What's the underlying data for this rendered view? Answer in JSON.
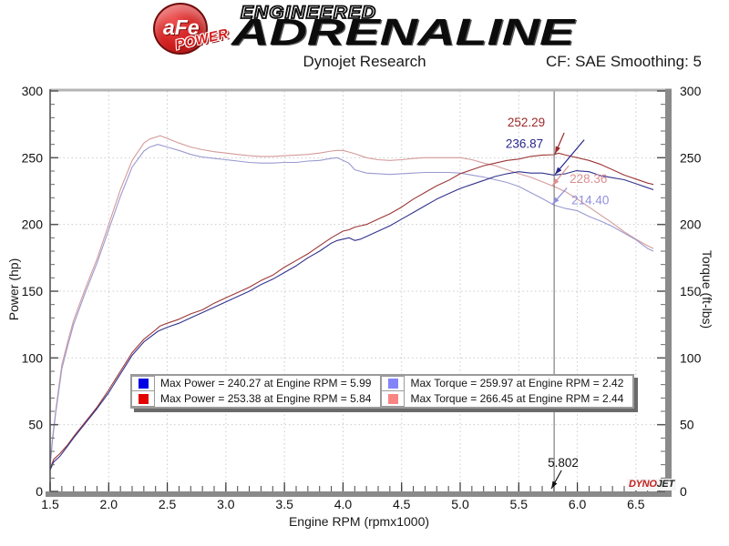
{
  "header": {
    "logo": {
      "badge_top": "aFe",
      "badge_reg": "®",
      "badge_bottom": "POWER",
      "line1": "ENGINEERED",
      "line2": "ADRENALINE"
    },
    "title": "Dynojet Research",
    "correction": "CF: SAE Smoothing: 5"
  },
  "chart_data": {
    "type": "line",
    "xlabel": "Engine RPM (rpmx1000)",
    "ylabel_left": "Power (hp)",
    "ylabel_right": "Torque (ft-lbs)",
    "xlim": [
      1.5,
      6.75
    ],
    "ylim": [
      0,
      300
    ],
    "x_major_ticks": [
      1.5,
      2.0,
      2.5,
      3.0,
      3.5,
      4.0,
      4.5,
      5.0,
      5.5,
      6.0,
      6.5
    ],
    "x_tick_labels": [
      "1.5",
      "2.0",
      "2.5",
      "3.0",
      "3.5",
      "4.0",
      "4.5",
      "5.0",
      "5.5",
      "6.0",
      "6.5"
    ],
    "x_minor_step": 0.1,
    "y_major_ticks": [
      0,
      50,
      100,
      150,
      200,
      250,
      300
    ],
    "y_tick_labels": [
      "0",
      "50",
      "100",
      "150",
      "200",
      "250",
      "300"
    ],
    "y_minor_step": 10,
    "grid": "dotted",
    "colors": {
      "grid": "#cbcbcb",
      "spine": "#8a8a8a",
      "spine_top": "#b4b4b4",
      "cursor_line": "#666666"
    },
    "series": [
      {
        "name": "torque-afe",
        "legend": "Max Torque = 266.45 at Engine RPM = 2.44",
        "axis": "right",
        "color": "#d49a9a",
        "points": [
          [
            1.5,
            20
          ],
          [
            1.52,
            40
          ],
          [
            1.55,
            62
          ],
          [
            1.6,
            95
          ],
          [
            1.65,
            112
          ],
          [
            1.7,
            128
          ],
          [
            1.8,
            152
          ],
          [
            1.9,
            174
          ],
          [
            2.0,
            200
          ],
          [
            2.1,
            226
          ],
          [
            2.2,
            248
          ],
          [
            2.3,
            261
          ],
          [
            2.35,
            264
          ],
          [
            2.44,
            266.5
          ],
          [
            2.5,
            264.5
          ],
          [
            2.6,
            261
          ],
          [
            2.7,
            258
          ],
          [
            2.8,
            256
          ],
          [
            2.9,
            254.5
          ],
          [
            3.0,
            253.5
          ],
          [
            3.1,
            252.5
          ],
          [
            3.2,
            251.5
          ],
          [
            3.3,
            251
          ],
          [
            3.4,
            251
          ],
          [
            3.5,
            251.5
          ],
          [
            3.6,
            252
          ],
          [
            3.7,
            252.5
          ],
          [
            3.8,
            253.5
          ],
          [
            3.9,
            255
          ],
          [
            3.95,
            255.5
          ],
          [
            4.0,
            255.5
          ],
          [
            4.1,
            253
          ],
          [
            4.2,
            250
          ],
          [
            4.3,
            248.5
          ],
          [
            4.4,
            248
          ],
          [
            4.5,
            248.5
          ],
          [
            4.6,
            249.5
          ],
          [
            4.7,
            250
          ],
          [
            4.8,
            250
          ],
          [
            4.9,
            250
          ],
          [
            5.0,
            250
          ],
          [
            5.1,
            248.5
          ],
          [
            5.2,
            246
          ],
          [
            5.3,
            244
          ],
          [
            5.4,
            241
          ],
          [
            5.5,
            238
          ],
          [
            5.6,
            235.5
          ],
          [
            5.7,
            232
          ],
          [
            5.8,
            228.5
          ],
          [
            5.9,
            224.5
          ],
          [
            6.0,
            219
          ],
          [
            6.1,
            213
          ],
          [
            6.2,
            207
          ],
          [
            6.3,
            201
          ],
          [
            6.4,
            194.5
          ],
          [
            6.5,
            189
          ],
          [
            6.6,
            184
          ],
          [
            6.65,
            182
          ]
        ]
      },
      {
        "name": "torque-stock",
        "legend": "Max Torque = 259.97 at Engine RPM = 2.42",
        "axis": "right",
        "color": "#9a9ad0",
        "points": [
          [
            1.5,
            19
          ],
          [
            1.52,
            38
          ],
          [
            1.55,
            60
          ],
          [
            1.6,
            92
          ],
          [
            1.65,
            109
          ],
          [
            1.7,
            125
          ],
          [
            1.8,
            149
          ],
          [
            1.9,
            171
          ],
          [
            2.0,
            196
          ],
          [
            2.1,
            221
          ],
          [
            2.2,
            243
          ],
          [
            2.3,
            255
          ],
          [
            2.35,
            258
          ],
          [
            2.42,
            260
          ],
          [
            2.5,
            258
          ],
          [
            2.6,
            255.5
          ],
          [
            2.7,
            252.5
          ],
          [
            2.8,
            250.5
          ],
          [
            2.9,
            249.5
          ],
          [
            3.0,
            248.5
          ],
          [
            3.1,
            247.5
          ],
          [
            3.2,
            246.5
          ],
          [
            3.3,
            246
          ],
          [
            3.4,
            246
          ],
          [
            3.5,
            246.5
          ],
          [
            3.6,
            246.5
          ],
          [
            3.7,
            247.5
          ],
          [
            3.8,
            248
          ],
          [
            3.9,
            249.5
          ],
          [
            3.95,
            250
          ],
          [
            4.0,
            248
          ],
          [
            4.05,
            246
          ],
          [
            4.1,
            241
          ],
          [
            4.2,
            238.5
          ],
          [
            4.3,
            238
          ],
          [
            4.4,
            237.5
          ],
          [
            4.5,
            238
          ],
          [
            4.6,
            238.5
          ],
          [
            4.7,
            239
          ],
          [
            4.8,
            239
          ],
          [
            4.9,
            239
          ],
          [
            5.0,
            238.5
          ],
          [
            5.1,
            237
          ],
          [
            5.2,
            235.5
          ],
          [
            5.3,
            233.5
          ],
          [
            5.4,
            231.5
          ],
          [
            5.5,
            228.5
          ],
          [
            5.6,
            224
          ],
          [
            5.7,
            219.5
          ],
          [
            5.8,
            214.5
          ],
          [
            5.9,
            212
          ],
          [
            6.0,
            210.3
          ],
          [
            6.1,
            206
          ],
          [
            6.2,
            202.5
          ],
          [
            6.3,
            198.5
          ],
          [
            6.4,
            193.5
          ],
          [
            6.5,
            188.5
          ],
          [
            6.6,
            182
          ],
          [
            6.65,
            180
          ]
        ]
      },
      {
        "name": "power-afe",
        "legend": "Max Power = 253.38 at Engine RPM = 5.84",
        "axis": "left",
        "color": "#9c3636",
        "points": [
          [
            1.5,
            17
          ],
          [
            1.53,
            24
          ],
          [
            1.58,
            28
          ],
          [
            1.65,
            35
          ],
          [
            1.7,
            41
          ],
          [
            1.8,
            52
          ],
          [
            1.9,
            63
          ],
          [
            2.0,
            76
          ],
          [
            2.1,
            90
          ],
          [
            2.2,
            104
          ],
          [
            2.3,
            114
          ],
          [
            2.4,
            121
          ],
          [
            2.44,
            124
          ],
          [
            2.5,
            126
          ],
          [
            2.6,
            129
          ],
          [
            2.7,
            133
          ],
          [
            2.8,
            136
          ],
          [
            2.9,
            141
          ],
          [
            3.0,
            145
          ],
          [
            3.1,
            149
          ],
          [
            3.2,
            153
          ],
          [
            3.3,
            158
          ],
          [
            3.4,
            162
          ],
          [
            3.5,
            168
          ],
          [
            3.6,
            173
          ],
          [
            3.7,
            178
          ],
          [
            3.8,
            184
          ],
          [
            3.9,
            190
          ],
          [
            4.0,
            195
          ],
          [
            4.05,
            196
          ],
          [
            4.1,
            198
          ],
          [
            4.15,
            199
          ],
          [
            4.2,
            200
          ],
          [
            4.3,
            204
          ],
          [
            4.4,
            208
          ],
          [
            4.5,
            213
          ],
          [
            4.6,
            219
          ],
          [
            4.7,
            224
          ],
          [
            4.8,
            229
          ],
          [
            4.9,
            233
          ],
          [
            5.0,
            238
          ],
          [
            5.1,
            241
          ],
          [
            5.2,
            244
          ],
          [
            5.3,
            246
          ],
          [
            5.4,
            248
          ],
          [
            5.5,
            249
          ],
          [
            5.6,
            251
          ],
          [
            5.7,
            252
          ],
          [
            5.8,
            252.3
          ],
          [
            5.84,
            253.4
          ],
          [
            5.9,
            252
          ],
          [
            6.0,
            250
          ],
          [
            6.1,
            248
          ],
          [
            6.2,
            245
          ],
          [
            6.3,
            241
          ],
          [
            6.4,
            237
          ],
          [
            6.5,
            234
          ],
          [
            6.6,
            231
          ],
          [
            6.65,
            230
          ]
        ]
      },
      {
        "name": "power-stock",
        "legend": "Max Power = 240.27 at Engine RPM = 5.99",
        "axis": "left",
        "color": "#32328e",
        "points": [
          [
            1.5,
            16
          ],
          [
            1.53,
            22
          ],
          [
            1.58,
            26
          ],
          [
            1.65,
            34
          ],
          [
            1.7,
            40
          ],
          [
            1.8,
            51
          ],
          [
            1.9,
            62
          ],
          [
            2.0,
            74
          ],
          [
            2.1,
            88
          ],
          [
            2.2,
            102
          ],
          [
            2.3,
            112
          ],
          [
            2.42,
            120
          ],
          [
            2.5,
            123
          ],
          [
            2.6,
            126
          ],
          [
            2.7,
            130
          ],
          [
            2.8,
            134
          ],
          [
            2.9,
            138
          ],
          [
            3.0,
            142
          ],
          [
            3.1,
            146
          ],
          [
            3.2,
            150
          ],
          [
            3.3,
            155
          ],
          [
            3.4,
            159
          ],
          [
            3.5,
            164
          ],
          [
            3.6,
            169
          ],
          [
            3.7,
            175
          ],
          [
            3.8,
            180
          ],
          [
            3.9,
            186
          ],
          [
            3.95,
            188
          ],
          [
            4.0,
            189
          ],
          [
            4.05,
            190
          ],
          [
            4.1,
            188
          ],
          [
            4.15,
            189
          ],
          [
            4.2,
            191
          ],
          [
            4.3,
            195
          ],
          [
            4.4,
            199
          ],
          [
            4.5,
            204
          ],
          [
            4.6,
            209
          ],
          [
            4.7,
            214
          ],
          [
            4.8,
            219
          ],
          [
            4.9,
            223
          ],
          [
            5.0,
            227
          ],
          [
            5.1,
            230
          ],
          [
            5.2,
            233
          ],
          [
            5.3,
            236
          ],
          [
            5.4,
            238
          ],
          [
            5.5,
            239.5
          ],
          [
            5.6,
            238.5
          ],
          [
            5.7,
            238.5
          ],
          [
            5.8,
            237
          ],
          [
            5.9,
            238
          ],
          [
            5.99,
            240.3
          ],
          [
            6.1,
            239.5
          ],
          [
            6.2,
            236.5
          ],
          [
            6.3,
            235
          ],
          [
            6.4,
            233.5
          ],
          [
            6.5,
            230.5
          ],
          [
            6.6,
            227.5
          ],
          [
            6.65,
            226
          ]
        ]
      }
    ],
    "cursor": {
      "x": 5.802,
      "label": "5.802",
      "values": [
        {
          "text": "252.29",
          "value": 252.29,
          "color": "#9e2828",
          "series": "power-afe"
        },
        {
          "text": "236.87",
          "value": 236.87,
          "color": "#28288e",
          "series": "power-stock"
        },
        {
          "text": "228.36",
          "value": 228.36,
          "color": "#dd9090",
          "series": "torque-afe"
        },
        {
          "text": "214.40",
          "value": 214.4,
          "color": "#9090dd",
          "series": "torque-stock"
        }
      ]
    }
  },
  "legend": {
    "rows": [
      {
        "color": "#0202e2",
        "text": "Max Power = 240.27 at Engine RPM = 5.99"
      },
      {
        "color": "#e20202",
        "text": "Max Power = 253.38 at Engine RPM = 5.84"
      },
      {
        "color": "#8484fa",
        "text": "Max Torque = 259.97 at Engine RPM = 2.42"
      },
      {
        "color": "#fa8484",
        "text": "Max Torque = 266.45 at Engine RPM = 2.44"
      }
    ]
  },
  "watermark": {
    "part1": "DYNO",
    "part2": "JET",
    "color1": "#c42020",
    "color2": "#1c1c1c"
  }
}
